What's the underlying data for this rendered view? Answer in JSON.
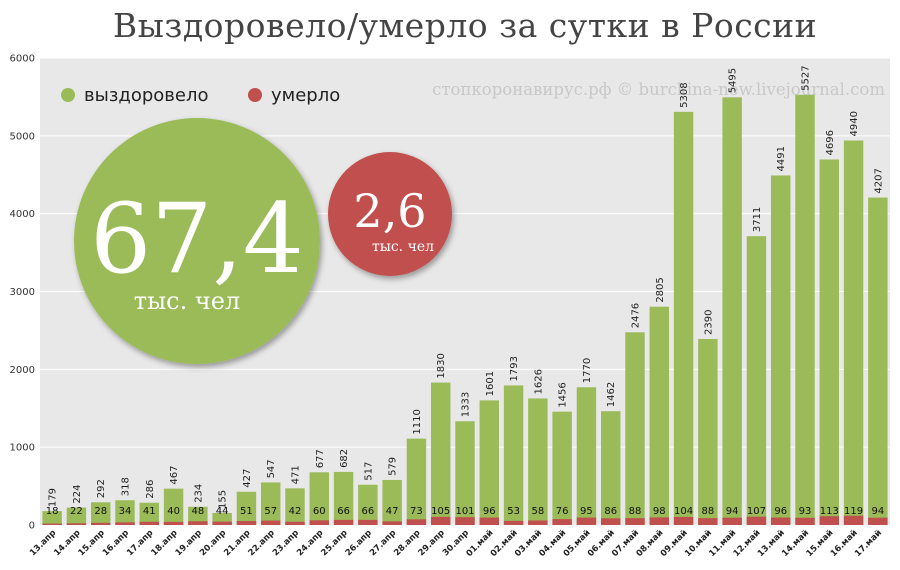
{
  "chart_data": {
    "type": "bar",
    "title": "Выздоровело/умерло за сутки в России",
    "watermark": "стопкоронавирус.рф © burckina-new.livejournal.com",
    "ylim": [
      0,
      6000
    ],
    "yticks": [
      0,
      1000,
      2000,
      3000,
      4000,
      5000,
      6000
    ],
    "grid": true,
    "legend_placement": "top-left",
    "categories": [
      "13.апр",
      "14.апр",
      "15.апр",
      "16.апр",
      "17.апр",
      "18.апр",
      "19.апр",
      "20.апр",
      "21.апр",
      "22.апр",
      "23.апр",
      "24.апр",
      "25.апр",
      "26.апр",
      "27.апр",
      "28.апр",
      "29.апр",
      "30.апр",
      "01.май",
      "02.май",
      "03.май",
      "04.май",
      "05.май",
      "06.май",
      "07.май",
      "08.май",
      "09.май",
      "10.май",
      "11.май",
      "12.май",
      "13.май",
      "14.май",
      "15.май",
      "16.май",
      "17.май"
    ],
    "series": [
      {
        "name": "выздоровело",
        "color": "#9bbb59",
        "values": [
          179,
          224,
          292,
          318,
          286,
          467,
          234,
          155,
          427,
          547,
          471,
          677,
          682,
          517,
          579,
          1110,
          1830,
          1333,
          1601,
          1793,
          1626,
          1456,
          1770,
          1462,
          2476,
          2805,
          5308,
          2390,
          5495,
          3711,
          4491,
          5527,
          4696,
          4940,
          4207
        ]
      },
      {
        "name": "умерло",
        "color": "#c0504d",
        "values": [
          18,
          22,
          28,
          34,
          41,
          40,
          48,
          44,
          51,
          57,
          42,
          60,
          66,
          66,
          47,
          73,
          105,
          101,
          96,
          53,
          58,
          76,
          95,
          86,
          88,
          98,
          104,
          88,
          94,
          107,
          96,
          93,
          113,
          119,
          94
        ]
      }
    ],
    "totals": [
      {
        "value": "67,4",
        "unit": "тыс. чел",
        "color": "#9bbb59"
      },
      {
        "value": "2,6",
        "unit": "тыс. чел",
        "color": "#c0504d"
      }
    ]
  }
}
